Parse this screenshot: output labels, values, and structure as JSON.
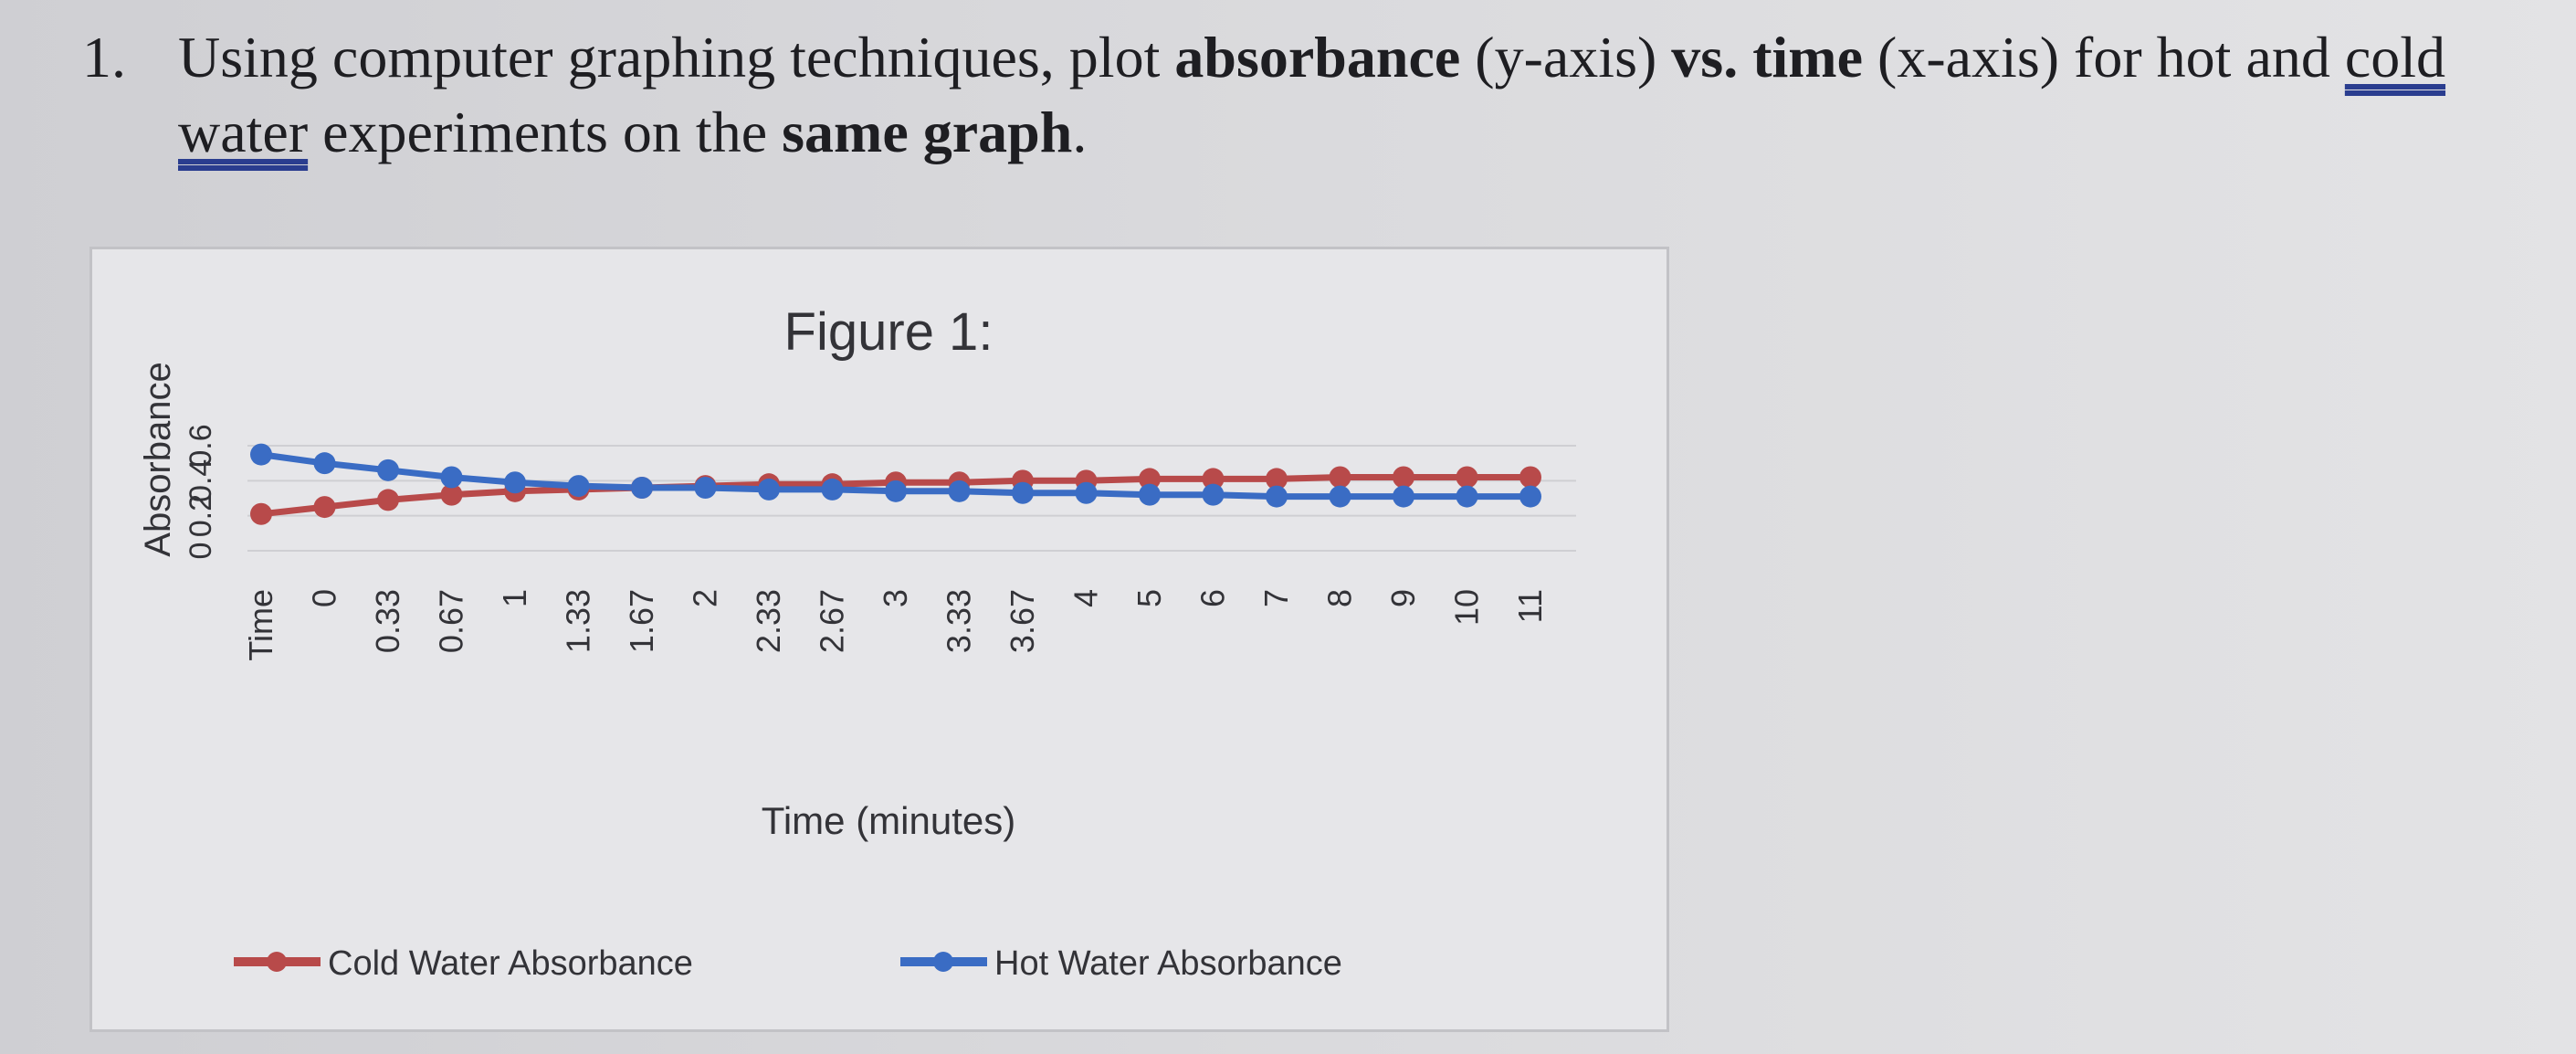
{
  "question": {
    "number": "1.",
    "part1": "Using computer graphing techniques, plot ",
    "bold1": "absorbance",
    "part2": " (y-axis) ",
    "bold2": "vs.",
    "part3": " ",
    "bold3": "time",
    "part4": " (x-axis) for hot and ",
    "underlined": "cold water",
    "part5": " experiments on the ",
    "bold4": "same graph",
    "part6": "."
  },
  "chart_data": {
    "type": "line",
    "title": "Figure 1:",
    "xlabel": "Time (minutes)",
    "ylabel": "Absorbance",
    "categories": [
      "Time",
      "0",
      "0.33",
      "0.67",
      "1",
      "1.33",
      "1.67",
      "2",
      "2.33",
      "2.67",
      "3",
      "3.33",
      "3.67",
      "4",
      "5",
      "6",
      "7",
      "8",
      "9",
      "10",
      "11"
    ],
    "ylim": [
      0,
      0.6
    ],
    "yticks": [
      "0",
      "0.2",
      "0.4",
      "0.6"
    ],
    "grid": true,
    "legend": "bottom",
    "series": [
      {
        "name": "Cold Water Absorbance",
        "color": "#b84a4a",
        "values": [
          0.21,
          0.25,
          0.29,
          0.32,
          0.34,
          0.35,
          0.36,
          0.37,
          0.38,
          0.38,
          0.39,
          0.39,
          0.4,
          0.4,
          0.41,
          0.41,
          0.41,
          0.42,
          0.42,
          0.42,
          0.42
        ]
      },
      {
        "name": "Hot Water Absorbance",
        "color": "#3a6cc4",
        "values": [
          0.55,
          0.5,
          0.46,
          0.42,
          0.39,
          0.37,
          0.36,
          0.36,
          0.35,
          0.35,
          0.34,
          0.34,
          0.33,
          0.33,
          0.32,
          0.32,
          0.31,
          0.31,
          0.31,
          0.31,
          0.31
        ]
      }
    ]
  }
}
